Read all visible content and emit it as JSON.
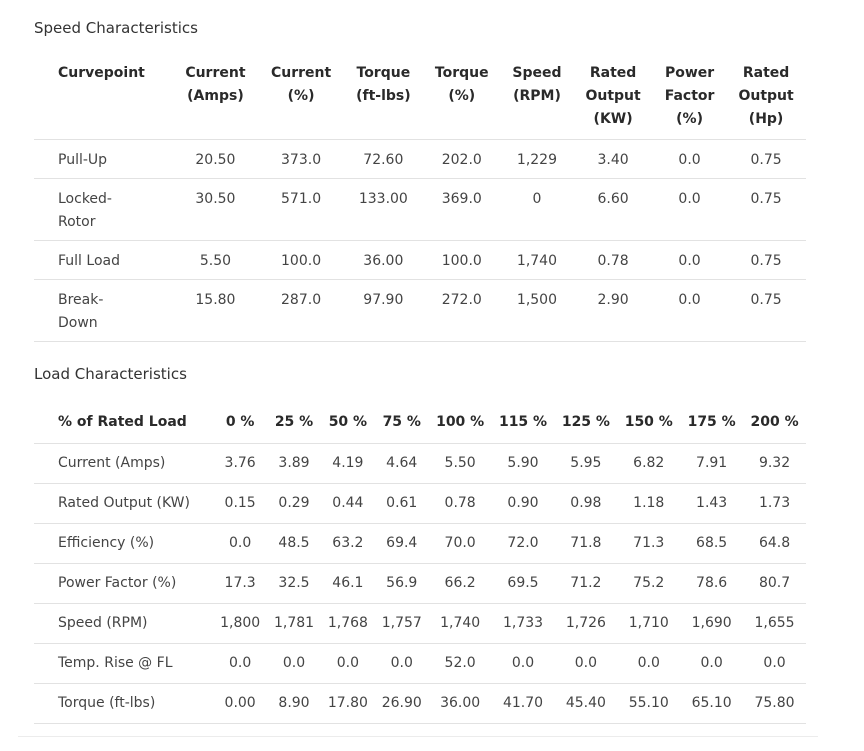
{
  "speed": {
    "title": "Speed Characteristics",
    "headers": [
      [
        "Curvepoint"
      ],
      [
        "Current",
        "(Amps)"
      ],
      [
        "Current",
        "(%)"
      ],
      [
        "Torque",
        "(ft-lbs)"
      ],
      [
        "Torque",
        "(%)"
      ],
      [
        "Speed",
        "(RPM)"
      ],
      [
        "Rated",
        "Output",
        "(KW)"
      ],
      [
        "Power",
        "Factor",
        "(%)"
      ],
      [
        "Rated",
        "Output",
        "(Hp)"
      ]
    ],
    "rows": [
      [
        [
          "Pull-Up"
        ],
        "20.50",
        "373.0",
        "72.60",
        "202.0",
        "1,229",
        "3.40",
        "0.0",
        "0.75"
      ],
      [
        [
          "Locked-",
          "Rotor"
        ],
        "30.50",
        "571.0",
        "133.00",
        "369.0",
        "0",
        "6.60",
        "0.0",
        "0.75"
      ],
      [
        [
          "Full Load"
        ],
        "5.50",
        "100.0",
        "36.00",
        "100.0",
        "1,740",
        "0.78",
        "0.0",
        "0.75"
      ],
      [
        [
          "Break-",
          "Down"
        ],
        "15.80",
        "287.0",
        "97.90",
        "272.0",
        "1,500",
        "2.90",
        "0.0",
        "0.75"
      ]
    ]
  },
  "load": {
    "title": "Load Characteristics",
    "headers": [
      "% of Rated Load",
      "0 %",
      "25 %",
      "50 %",
      "75 %",
      "100 %",
      "115 %",
      "125 %",
      "150 %",
      "175 %",
      "200 %"
    ],
    "rows": [
      [
        "Current (Amps)",
        "3.76",
        "3.89",
        "4.19",
        "4.64",
        "5.50",
        "5.90",
        "5.95",
        "6.82",
        "7.91",
        "9.32"
      ],
      [
        "Rated Output (KW)",
        "0.15",
        "0.29",
        "0.44",
        "0.61",
        "0.78",
        "0.90",
        "0.98",
        "1.18",
        "1.43",
        "1.73"
      ],
      [
        "Efficiency (%)",
        "0.0",
        "48.5",
        "63.2",
        "69.4",
        "70.0",
        "72.0",
        "71.8",
        "71.3",
        "68.5",
        "64.8"
      ],
      [
        "Power Factor (%)",
        "17.3",
        "32.5",
        "46.1",
        "56.9",
        "66.2",
        "69.5",
        "71.2",
        "75.2",
        "78.6",
        "80.7"
      ],
      [
        "Speed (RPM)",
        "1,800",
        "1,781",
        "1,768",
        "1,757",
        "1,740",
        "1,733",
        "1,726",
        "1,710",
        "1,690",
        "1,655"
      ],
      [
        "Temp. Rise @ FL",
        "0.0",
        "0.0",
        "0.0",
        "0.0",
        "52.0",
        "0.0",
        "0.0",
        "0.0",
        "0.0",
        "0.0"
      ],
      [
        "Torque (ft-lbs)",
        "0.00",
        "8.90",
        "17.80",
        "26.90",
        "36.00",
        "41.70",
        "45.40",
        "55.10",
        "65.10",
        "75.80"
      ]
    ]
  }
}
